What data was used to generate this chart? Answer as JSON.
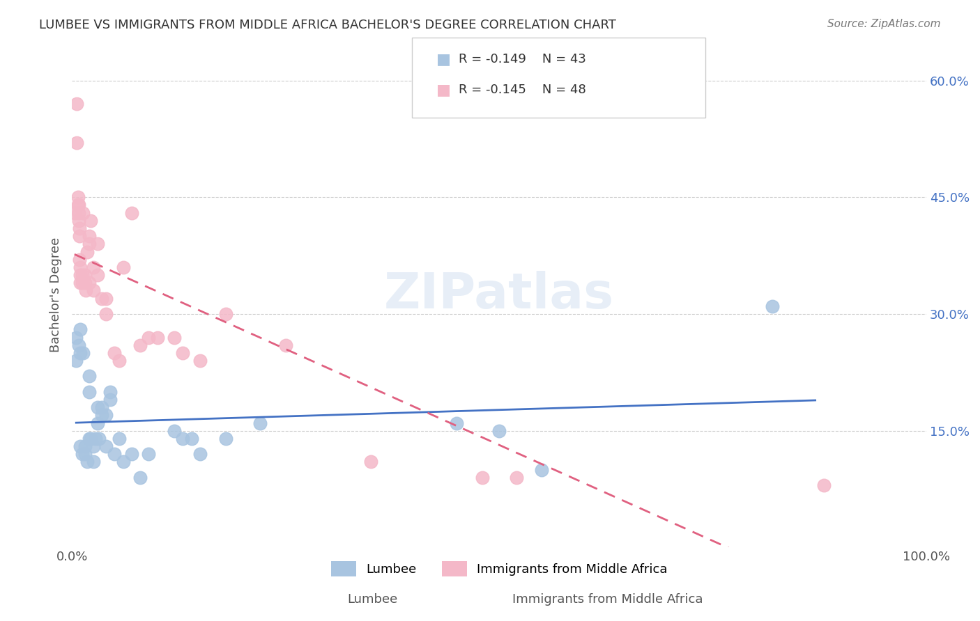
{
  "title": "LUMBEE VS IMMIGRANTS FROM MIDDLE AFRICA BACHELOR'S DEGREE CORRELATION CHART",
  "source": "Source: ZipAtlas.com",
  "ylabel": "Bachelor's Degree",
  "xlabel_lumbee": "Lumbee",
  "xlabel_immigrants": "Immigrants from Middle Africa",
  "xlim": [
    0.0,
    1.0
  ],
  "ylim": [
    0.0,
    0.65
  ],
  "xticks": [
    0.0,
    0.25,
    0.5,
    0.75,
    1.0
  ],
  "xticklabels": [
    "0.0%",
    "",
    "",
    "",
    "100.0%"
  ],
  "yticks": [
    0.0,
    0.15,
    0.3,
    0.45,
    0.6
  ],
  "yticklabels": [
    "",
    "15.0%",
    "30.0%",
    "45.0%",
    "60.0%"
  ],
  "legend_r_lumbee": "R = -0.149",
  "legend_n_lumbee": "N = 43",
  "legend_r_immigrants": "R = -0.145",
  "legend_n_immigrants": "N = 48",
  "lumbee_color": "#a8c4e0",
  "immigrants_color": "#f4b8c8",
  "lumbee_line_color": "#4472c4",
  "immigrants_line_color": "#e06080",
  "watermark": "ZIPatlas",
  "lumbee_x": [
    0.005,
    0.005,
    0.008,
    0.01,
    0.01,
    0.01,
    0.012,
    0.013,
    0.015,
    0.015,
    0.018,
    0.02,
    0.02,
    0.02,
    0.022,
    0.025,
    0.025,
    0.028,
    0.03,
    0.03,
    0.032,
    0.035,
    0.035,
    0.04,
    0.04,
    0.045,
    0.045,
    0.05,
    0.055,
    0.06,
    0.07,
    0.08,
    0.09,
    0.12,
    0.13,
    0.14,
    0.15,
    0.18,
    0.22,
    0.45,
    0.5,
    0.55,
    0.82
  ],
  "lumbee_y": [
    0.24,
    0.27,
    0.26,
    0.25,
    0.28,
    0.13,
    0.12,
    0.25,
    0.13,
    0.12,
    0.11,
    0.22,
    0.2,
    0.14,
    0.14,
    0.13,
    0.11,
    0.14,
    0.18,
    0.16,
    0.14,
    0.18,
    0.17,
    0.17,
    0.13,
    0.2,
    0.19,
    0.12,
    0.14,
    0.11,
    0.12,
    0.09,
    0.12,
    0.15,
    0.14,
    0.14,
    0.12,
    0.14,
    0.16,
    0.16,
    0.15,
    0.1,
    0.31
  ],
  "immigrants_x": [
    0.003,
    0.006,
    0.006,
    0.007,
    0.007,
    0.008,
    0.008,
    0.008,
    0.009,
    0.009,
    0.009,
    0.01,
    0.01,
    0.01,
    0.012,
    0.012,
    0.013,
    0.015,
    0.015,
    0.016,
    0.018,
    0.02,
    0.02,
    0.02,
    0.022,
    0.025,
    0.025,
    0.03,
    0.03,
    0.035,
    0.04,
    0.04,
    0.05,
    0.055,
    0.06,
    0.07,
    0.08,
    0.09,
    0.1,
    0.12,
    0.13,
    0.15,
    0.18,
    0.25,
    0.35,
    0.48,
    0.52,
    0.88
  ],
  "immigrants_y": [
    0.43,
    0.57,
    0.52,
    0.45,
    0.44,
    0.44,
    0.43,
    0.42,
    0.41,
    0.4,
    0.37,
    0.36,
    0.35,
    0.34,
    0.35,
    0.34,
    0.43,
    0.35,
    0.34,
    0.33,
    0.38,
    0.4,
    0.39,
    0.34,
    0.42,
    0.36,
    0.33,
    0.39,
    0.35,
    0.32,
    0.32,
    0.3,
    0.25,
    0.24,
    0.36,
    0.43,
    0.26,
    0.27,
    0.27,
    0.27,
    0.25,
    0.24,
    0.3,
    0.26,
    0.11,
    0.09,
    0.09,
    0.08
  ]
}
